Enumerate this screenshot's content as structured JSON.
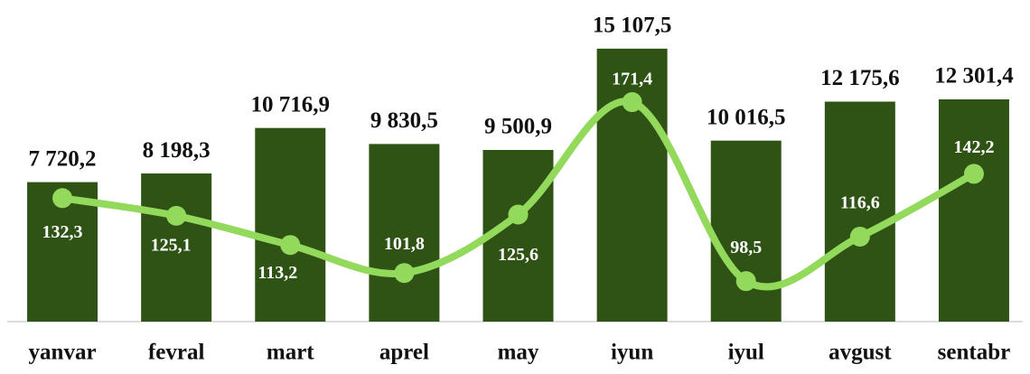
{
  "chart_data": {
    "type": "bar+line",
    "categories": [
      "yanvar",
      "fevral",
      "mart",
      "aprel",
      "may",
      "iyun",
      "iyul",
      "avgust",
      "sentabr"
    ],
    "series": [
      {
        "color": "#2e5314",
        "values": [
          7720.2,
          8198.3,
          10716.9,
          9830.5,
          9500.9,
          15107.5,
          10016.5,
          12175.6,
          12301.4
        ],
        "value_labels": [
          "7 720,2",
          "8 198,3",
          "10 716,9",
          "9 830,5",
          "9 500,9",
          "15 107,5",
          "10 016,5",
          "12 175,6",
          "12 301,4"
        ]
      },
      {
        "color": "#92d95c",
        "axis": "y2",
        "values": [
          132.3,
          125.1,
          113.2,
          101.8,
          125.6,
          171.4,
          98.5,
          116.6,
          142.2
        ],
        "value_labels": [
          "132,3",
          "125,1",
          "113,2",
          "101,8",
          "125,6",
          "171,4",
          "98,5",
          "116,6",
          "142,2"
        ]
      }
    ],
    "ylim": [
      0,
      17800
    ],
    "y2lim": [
      82,
      213
    ]
  }
}
